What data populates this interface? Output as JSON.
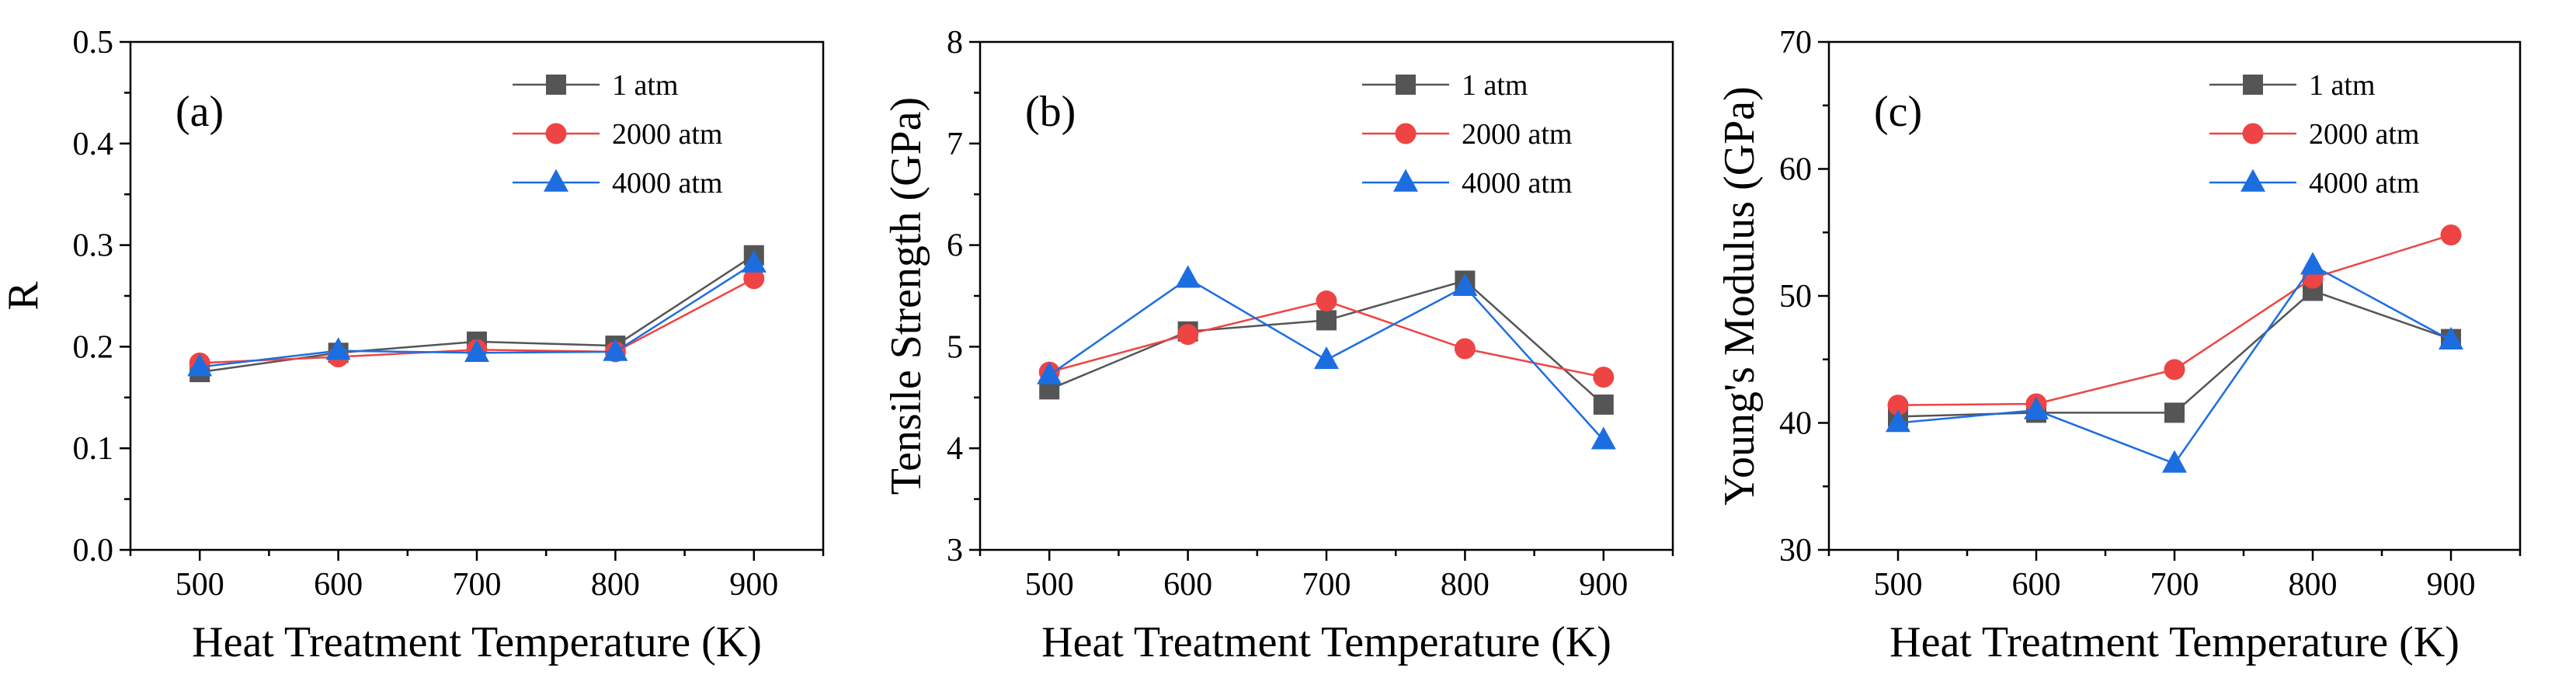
{
  "figure": {
    "xlabel": "Heat Treatment Temperature (K)",
    "legend": [
      "1 atm",
      "2000 atm",
      "4000 atm"
    ],
    "series_styles": [
      {
        "color": "#555555",
        "marker": "square"
      },
      {
        "color": "#ef4444",
        "marker": "circle"
      },
      {
        "color": "#1c6ee0",
        "marker": "triangle"
      }
    ]
  },
  "chart_data": [
    {
      "type": "line",
      "panel_label": "(a)",
      "title": "",
      "xlabel": "Heat Treatment Temperature (K)",
      "ylabel": "R",
      "x": [
        500,
        600,
        700,
        800,
        900
      ],
      "xticks": [
        "500",
        "600",
        "700",
        "800",
        "900"
      ],
      "xlim": [
        450,
        950
      ],
      "ylim": [
        0.0,
        0.5
      ],
      "yticks": [
        "0.0",
        "0.1",
        "0.2",
        "0.3",
        "0.4",
        "0.5"
      ],
      "legend_position": "top-right",
      "series": [
        {
          "name": "1 atm",
          "values": [
            0.175,
            0.194,
            0.205,
            0.201,
            0.29
          ]
        },
        {
          "name": "2000 atm",
          "values": [
            0.184,
            0.19,
            0.197,
            0.195,
            0.267
          ]
        },
        {
          "name": "4000 atm",
          "values": [
            0.18,
            0.196,
            0.194,
            0.195,
            0.282
          ]
        }
      ]
    },
    {
      "type": "line",
      "panel_label": "(b)",
      "title": "",
      "xlabel": "Heat Treatment Temperature (K)",
      "ylabel": "Tensile Strength (GPa)",
      "x": [
        500,
        600,
        700,
        800,
        900
      ],
      "xticks": [
        "500",
        "600",
        "700",
        "800",
        "900"
      ],
      "xlim": [
        450,
        950
      ],
      "ylim": [
        3,
        8
      ],
      "yticks": [
        "3",
        "4",
        "5",
        "6",
        "7",
        "8"
      ],
      "legend_position": "top-right",
      "series": [
        {
          "name": "1 atm",
          "values": [
            4.58,
            5.15,
            5.26,
            5.65,
            4.43
          ]
        },
        {
          "name": "2000 atm",
          "values": [
            4.75,
            5.12,
            5.45,
            4.98,
            4.7
          ]
        },
        {
          "name": "4000 atm",
          "values": [
            4.72,
            5.67,
            4.87,
            5.59,
            4.08
          ]
        }
      ]
    },
    {
      "type": "line",
      "panel_label": "(c)",
      "title": "",
      "xlabel": "Heat Treatment Temperature (K)",
      "ylabel": "Young's Modulus (GPa)",
      "x": [
        500,
        600,
        700,
        800,
        900
      ],
      "xticks": [
        "500",
        "600",
        "700",
        "800",
        "900"
      ],
      "xlim": [
        450,
        950
      ],
      "ylim": [
        30,
        70
      ],
      "yticks": [
        "30",
        "40",
        "50",
        "60",
        "70"
      ],
      "legend_position": "top-right",
      "series": [
        {
          "name": "1 atm",
          "values": [
            40.5,
            40.8,
            40.8,
            50.4,
            46.6
          ]
        },
        {
          "name": "2000 atm",
          "values": [
            41.4,
            41.5,
            44.2,
            51.4,
            54.8
          ]
        },
        {
          "name": "4000 atm",
          "values": [
            40.0,
            41.0,
            36.8,
            52.4,
            46.5
          ]
        }
      ]
    }
  ]
}
